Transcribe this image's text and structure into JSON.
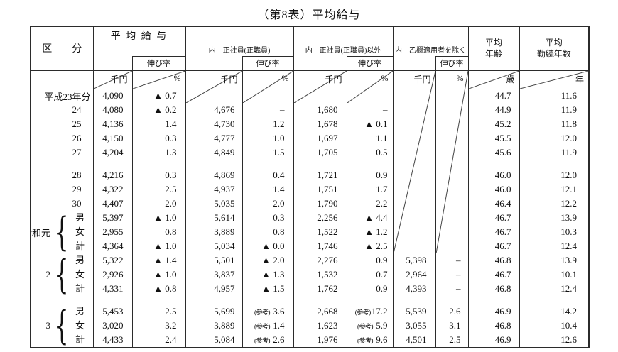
{
  "title": "（第8表）平均給与",
  "table": {
    "headers": {
      "kubun": "区　　分",
      "kyuyo": "平 均 給 与",
      "seishain": "内　正社員(正職員)",
      "igai": "内　正社員(正職員)以外",
      "otsuran": "内　乙欄適用者を除く",
      "nobiritsu": "伸び率",
      "age_l1": "平均",
      "age_l2": "年齢",
      "years_l1": "平均",
      "years_l2": "勤続年数"
    },
    "units": {
      "sen_yen": "千円",
      "percent": "%",
      "sai": "歳",
      "nen": "年"
    },
    "brace": "{",
    "columns": [
      "kubun",
      "kyuyo_sen",
      "kyuyo_pct",
      "seishain_sen",
      "seishain_pct",
      "igai_sen",
      "igai_pct",
      "otsuran_sen",
      "otsuran_pct",
      "age",
      "years"
    ],
    "rows": [
      {
        "label": "平成23年分",
        "full": true,
        "cells": [
          "4,090",
          "▲ 0.7",
          null,
          null,
          null,
          null,
          null,
          null,
          "44.7",
          "11.6"
        ]
      },
      {
        "label": "24",
        "cells": [
          "4,080",
          "▲ 0.2",
          "4,676",
          "–",
          "1,680",
          "–",
          null,
          null,
          "44.9",
          "11.9"
        ]
      },
      {
        "label": "25",
        "cells": [
          "4,136",
          "1.4",
          "4,730",
          "1.2",
          "1,678",
          "▲ 0.1",
          null,
          null,
          "45.2",
          "11.8"
        ]
      },
      {
        "label": "26",
        "cells": [
          "4,150",
          "0.3",
          "4,777",
          "1.0",
          "1,697",
          "1.1",
          null,
          null,
          "45.5",
          "12.0"
        ]
      },
      {
        "label": "27",
        "cells": [
          "4,204",
          "1.3",
          "4,849",
          "1.5",
          "1,705",
          "0.5",
          null,
          null,
          "45.6",
          "11.9"
        ]
      },
      {
        "spacer": true,
        "label": "",
        "cells": [
          "",
          "",
          "",
          "",
          "",
          "",
          null,
          null,
          "",
          ""
        ]
      },
      {
        "label": "28",
        "cells": [
          "4,216",
          "0.3",
          "4,869",
          "0.4",
          "1,721",
          "0.9",
          null,
          null,
          "46.0",
          "12.0"
        ]
      },
      {
        "label": "29",
        "cells": [
          "4,322",
          "2.5",
          "4,937",
          "1.4",
          "1,751",
          "1.7",
          null,
          null,
          "46.0",
          "12.1"
        ]
      },
      {
        "label": "30",
        "cells": [
          "4,407",
          "2.0",
          "5,035",
          "2.0",
          "1,790",
          "2.2",
          null,
          null,
          "46.4",
          "12.2"
        ]
      },
      {
        "group": {
          "era": "令和元",
          "members": [
            "男",
            "女",
            "計"
          ]
        },
        "cells": [
          "5,397",
          "▲ 1.0",
          "5,614",
          "0.3",
          "2,256",
          "▲ 4.4",
          null,
          null,
          "46.7",
          "13.9"
        ]
      },
      {
        "cells": [
          "2,955",
          "0.8",
          "3,889",
          "0.8",
          "1,522",
          "▲ 1.2",
          null,
          null,
          "46.7",
          "10.3"
        ]
      },
      {
        "cells": [
          "4,364",
          "▲ 1.0",
          "5,034",
          "▲ 0.0",
          "1,746",
          "▲ 2.5",
          null,
          null,
          "46.7",
          "12.4"
        ]
      },
      {
        "group": {
          "era": "2",
          "members": [
            "男",
            "女",
            "計"
          ]
        },
        "cells": [
          "5,322",
          "▲ 1.4",
          "5,501",
          "▲ 2.0",
          "2,276",
          "0.9",
          "5,398",
          "–",
          "46.8",
          "13.9"
        ]
      },
      {
        "cells": [
          "2,926",
          "▲ 1.0",
          "3,837",
          "▲ 1.3",
          "1,532",
          "0.7",
          "2,964",
          "–",
          "46.7",
          "10.1"
        ]
      },
      {
        "cells": [
          "4,331",
          "▲ 0.8",
          "4,957",
          "▲ 1.5",
          "1,762",
          "0.9",
          "4,393",
          "–",
          "46.8",
          "12.4"
        ]
      },
      {
        "spacer": true,
        "label": "",
        "cells": [
          "",
          "",
          "",
          "",
          "",
          "",
          "",
          "",
          "",
          ""
        ]
      },
      {
        "group": {
          "era": "3",
          "members": [
            "男",
            "女",
            "計"
          ]
        },
        "cells": [
          "5,453",
          "2.5",
          "5,699",
          "(参考) 3.6",
          "2,668",
          "(参考)17.2",
          "5,539",
          "2.6",
          "46.9",
          "14.2"
        ]
      },
      {
        "cells": [
          "3,020",
          "3.2",
          "3,889",
          "(参考) 1.4",
          "1,623",
          "(参考) 5.9",
          "3,055",
          "3.1",
          "46.8",
          "10.4"
        ]
      },
      {
        "cells": [
          "4,433",
          "2.4",
          "5,084",
          "(参考) 2.6",
          "1,976",
          "(参考) 9.6",
          "4,501",
          "2.5",
          "46.9",
          "12.6"
        ]
      }
    ]
  }
}
